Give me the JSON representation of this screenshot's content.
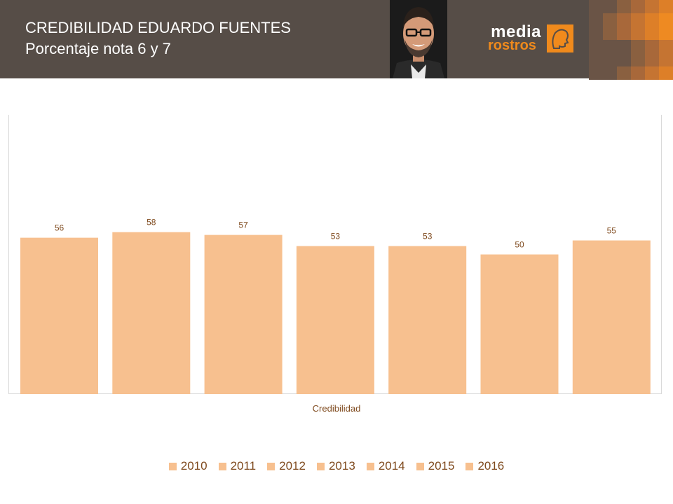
{
  "header": {
    "title": "CREDIBILIDAD EDUARDO FUENTES",
    "subtitle": "Porcentaje nota 6 y 7",
    "logo_word1": "media",
    "logo_word2": "rostros"
  },
  "colors": {
    "header_bg": "#564d47",
    "bar": "#f7c08f",
    "accent": "#f08a1c",
    "text_brown": "#7f4a1e"
  },
  "chart_data": {
    "type": "bar",
    "xlabel": "Credibilidad",
    "ylabel": "",
    "ylim": [
      0,
      100
    ],
    "grid": false,
    "legend_position": "bottom",
    "categories": [
      "Credibilidad"
    ],
    "series": [
      {
        "name": "2010",
        "values": [
          56
        ]
      },
      {
        "name": "2011",
        "values": [
          58
        ]
      },
      {
        "name": "2012",
        "values": [
          57
        ]
      },
      {
        "name": "2013",
        "values": [
          53
        ]
      },
      {
        "name": "2014",
        "values": [
          53
        ]
      },
      {
        "name": "2015",
        "values": [
          50
        ]
      },
      {
        "name": "2016",
        "values": [
          55
        ]
      }
    ]
  }
}
